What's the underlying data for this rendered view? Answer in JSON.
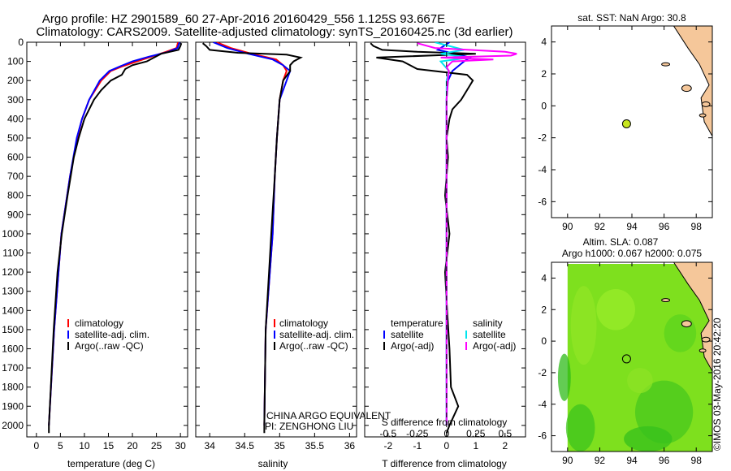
{
  "title_line1": "Argo profile: HZ 2901589_60 27-Apr-2016 20160429_556 1.125S 93.667E",
  "title_line2": "Climatology: CARS2009. Satellite-adjusted climatology: synTS_20160425.nc (3d earlier)",
  "watermark": "©IMOS 03-May-2016 20:42:20",
  "colors": {
    "climatology": "#ff0000",
    "satellite": "#0000ff",
    "argo": "#000000",
    "sal_satellite": "#00e5ee",
    "sal_argo": "#ff00ff",
    "land": "#f5c79a",
    "float_marker": "#c8e61e",
    "sla_bg": "#7ee01e"
  },
  "chart_data": [
    {
      "type": "line",
      "name": "temperature-profile",
      "xlabel": "temperature (deg C)",
      "ylabel": "",
      "xlim": [
        -2,
        31.5
      ],
      "ylim": [
        0,
        2060
      ],
      "xticks": [
        "0",
        "5",
        "10",
        "15",
        "20",
        "25",
        "30"
      ],
      "xtick_values": [
        0,
        5,
        10,
        15,
        20,
        25,
        30
      ],
      "yticks": [
        "0",
        "100",
        "200",
        "300",
        "400",
        "500",
        "600",
        "700",
        "800",
        "900",
        "1000",
        "1100",
        "1200",
        "1300",
        "1400",
        "1500",
        "1600",
        "1700",
        "1800",
        "1900",
        "2000"
      ],
      "ytick_values": [
        0,
        100,
        200,
        300,
        400,
        500,
        600,
        700,
        800,
        900,
        1000,
        1100,
        1200,
        1300,
        1400,
        1500,
        1600,
        1700,
        1800,
        1900,
        2000
      ],
      "legend": [
        "climatology",
        "satellite-adj. clim.",
        "Argo(..raw -QC)"
      ],
      "series": [
        {
          "name": "climatology",
          "depth": [
            0,
            30,
            50,
            75,
            100,
            125,
            150,
            200,
            300,
            400,
            500,
            700,
            1000,
            1500,
            2000
          ],
          "values": [
            29.5,
            29.2,
            27,
            24,
            21,
            18,
            15.5,
            13.5,
            11,
            9.5,
            8.5,
            7,
            5.2,
            3.7,
            2.6
          ]
        },
        {
          "name": "satellite-adj. clim.",
          "depth": [
            0,
            30,
            50,
            75,
            100,
            125,
            150,
            200,
            300,
            400,
            500,
            700,
            1000,
            1500,
            2000
          ],
          "values": [
            29.8,
            29.4,
            27.5,
            23.5,
            20,
            17.5,
            15.2,
            13.2,
            11,
            9.5,
            8.4,
            7,
            5.2,
            3.7,
            2.6
          ]
        },
        {
          "name": "Argo",
          "depth": [
            5,
            20,
            40,
            60,
            80,
            100,
            120,
            140,
            170,
            200,
            250,
            300,
            400,
            500,
            600,
            800,
            1000,
            1200,
            1500,
            1800,
            2000,
            2040
          ],
          "values": [
            30.2,
            30,
            29.6,
            26,
            24.5,
            23,
            20,
            18.5,
            17.8,
            15.5,
            13.5,
            12,
            10,
            8.8,
            7.8,
            6.5,
            5.3,
            4.4,
            3.6,
            3.0,
            2.6,
            2.6
          ]
        }
      ]
    },
    {
      "type": "line",
      "name": "salinity-profile",
      "xlabel": "salinity",
      "xlim": [
        33.8,
        36.1
      ],
      "ylim": [
        0,
        2060
      ],
      "xticks": [
        "34",
        "34.5",
        "35",
        "35.5",
        "36"
      ],
      "xtick_values": [
        34,
        34.5,
        35,
        35.5,
        36
      ],
      "legend": [
        "climatology",
        "satellite-adj. clim.",
        "Argo(..raw -QC)"
      ],
      "annotation": [
        "CHINA ARGO EQUIVALENT",
        "PI: ZENGHONG LIU"
      ],
      "series": [
        {
          "name": "climatology",
          "depth": [
            0,
            30,
            60,
            90,
            120,
            150,
            200,
            300,
            400,
            500,
            700,
            1000,
            1500,
            2000
          ],
          "values": [
            34.1,
            34.3,
            34.6,
            34.95,
            35.05,
            35.1,
            35.05,
            35.0,
            34.98,
            34.96,
            34.93,
            34.9,
            34.8,
            34.78
          ]
        },
        {
          "name": "satellite-adj. clim.",
          "depth": [
            0,
            30,
            60,
            90,
            120,
            150,
            200,
            300,
            400,
            500,
            700,
            1000,
            1500,
            2000
          ],
          "values": [
            34.05,
            34.25,
            34.55,
            34.9,
            35.05,
            35.15,
            35.1,
            35.0,
            34.98,
            34.96,
            34.93,
            34.9,
            34.8,
            34.78
          ]
        },
        {
          "name": "Argo",
          "depth": [
            5,
            20,
            40,
            55,
            65,
            80,
            100,
            120,
            150,
            200,
            300,
            400,
            500,
            700,
            1000,
            1500,
            2000,
            2040
          ],
          "values": [
            33.9,
            33.95,
            34.0,
            34.4,
            35.1,
            35.3,
            35.2,
            35.15,
            35.15,
            35.05,
            35.0,
            34.98,
            34.96,
            34.93,
            34.88,
            34.8,
            34.78,
            34.78
          ]
        }
      ]
    },
    {
      "type": "line",
      "name": "difference-profile",
      "xlabel": "T difference from climatology",
      "xlabel_top": "S difference from climatology",
      "xlim": [
        -2.8,
        2.7
      ],
      "ylim": [
        0,
        2060
      ],
      "xticks": [
        "-2",
        "-1",
        "0",
        "1",
        "2"
      ],
      "xtick_values": [
        -2,
        -1,
        0,
        1,
        2
      ],
      "sticks": [
        "-0.5",
        "-0.25",
        "0",
        "0.25",
        "0.5"
      ],
      "stick_values": [
        -0.5,
        -0.25,
        0,
        0.25,
        0.5
      ],
      "legend_temperature_title": "temperature",
      "legend_salinity_title": "salinity",
      "legend": [
        "satellite",
        "Argo(-adj)",
        "satellite",
        "Argo(-adj)"
      ],
      "series": [
        {
          "name": "T satellite",
          "depth": [
            0,
            40,
            60,
            80,
            100,
            150,
            200,
            300,
            400,
            600,
            1000,
            1500,
            2000
          ],
          "values": [
            0.1,
            -0.3,
            0.3,
            0.8,
            0.6,
            0.2,
            0.05,
            0,
            0,
            0,
            0,
            0,
            0
          ]
        },
        {
          "name": "T Argo(-adj)",
          "depth": [
            5,
            20,
            40,
            50,
            60,
            80,
            100,
            140,
            170,
            200,
            250,
            300,
            350,
            400,
            500,
            600,
            800,
            1000,
            1200,
            1400,
            1600,
            1800,
            1900,
            2000,
            2040
          ],
          "values": [
            -2.6,
            -2.5,
            -2.2,
            -1.0,
            1.0,
            -2.4,
            -1.5,
            -1.0,
            0.7,
            0.9,
            0.7,
            0.5,
            0.2,
            0.1,
            0.0,
            0.05,
            -0.05,
            0.1,
            -0.05,
            0.02,
            0.1,
            0.15,
            0.4,
            0.1,
            0
          ]
        },
        {
          "name": "S satellite",
          "depth": [
            0,
            40,
            60,
            80,
            100,
            150,
            200,
            300,
            500,
            1000,
            2000
          ],
          "values": [
            -0.1,
            0.15,
            -0.05,
            0.2,
            -0.05,
            0.02,
            0,
            0,
            0,
            0,
            0
          ]
        },
        {
          "name": "S Argo(-adj)",
          "depth": [
            5,
            30,
            50,
            60,
            70,
            80,
            90,
            100,
            130,
            150,
            200,
            300,
            500,
            1000,
            2000
          ],
          "values": [
            -0.25,
            -0.1,
            0.5,
            0.6,
            0.55,
            -0.05,
            0.4,
            0.05,
            0.0,
            0.02,
            0.01,
            0,
            0,
            0,
            0
          ]
        }
      ]
    },
    {
      "type": "map",
      "name": "sst-map",
      "title": "sat. SST: NaN Argo: 30.8",
      "xlim": [
        89,
        99
      ],
      "ylim": [
        -7,
        5
      ],
      "xticks": [
        "90",
        "92",
        "94",
        "96",
        "98"
      ],
      "xtick_values": [
        90,
        92,
        94,
        96,
        98
      ],
      "yticks": [
        "4",
        "2",
        "0",
        "-2",
        "-4",
        "-6"
      ],
      "ytick_values": [
        4,
        2,
        0,
        -2,
        -4,
        -6
      ],
      "float_lon": 93.667,
      "float_lat": -1.125
    },
    {
      "type": "heatmap",
      "name": "sla-map",
      "title_line1": "Altim. SLA: 0.087",
      "title_line2": "Argo h1000: 0.067 h2000: 0.075",
      "xlim": [
        89,
        99
      ],
      "ylim": [
        -7,
        5
      ],
      "xticks": [
        "90",
        "92",
        "94",
        "96",
        "98"
      ],
      "xtick_values": [
        90,
        92,
        94,
        96,
        98
      ],
      "yticks": [
        "4",
        "2",
        "0",
        "-2",
        "-4",
        "-6"
      ],
      "ytick_values": [
        4,
        2,
        0,
        -2,
        -4,
        -6
      ],
      "float_lon": 93.667,
      "float_lat": -1.125
    }
  ]
}
